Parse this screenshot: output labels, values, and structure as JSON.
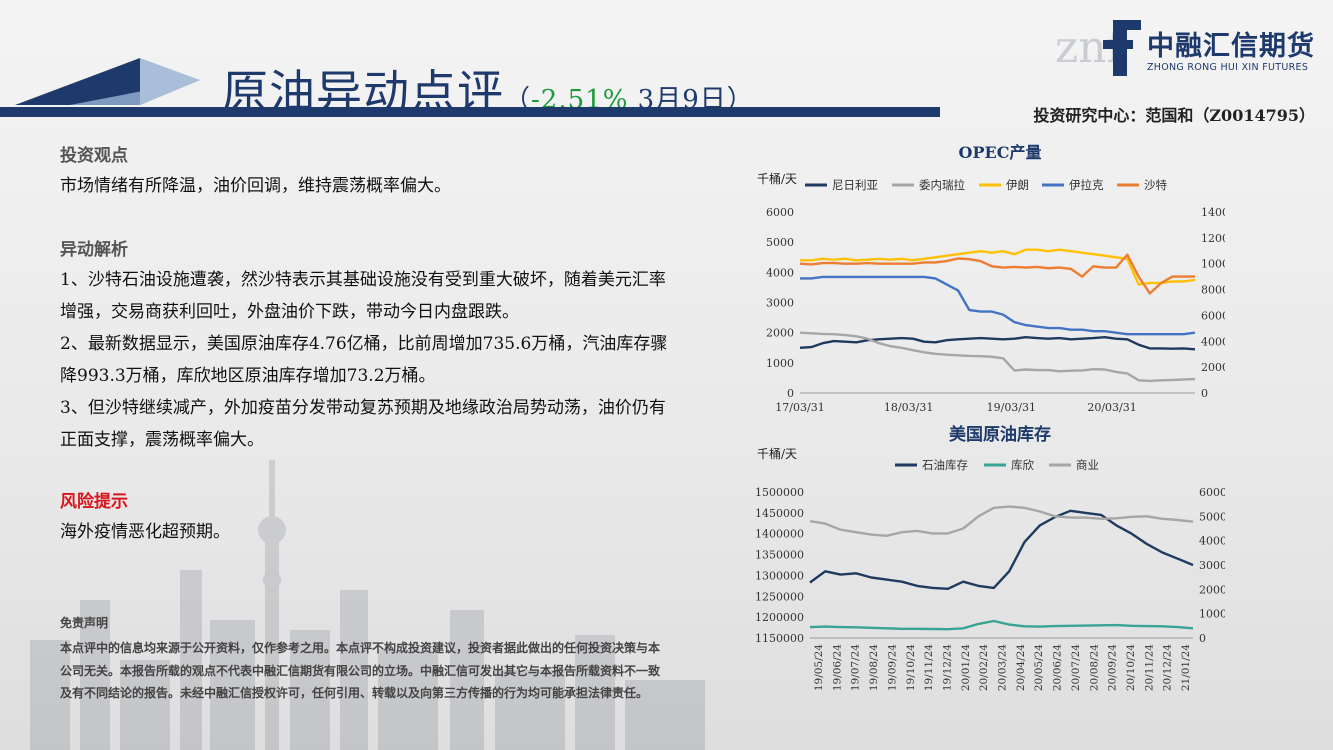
{
  "header": {
    "title_main": "原油异动点评",
    "title_paren_open": "（",
    "title_pct": "-2.51%",
    "title_date": " 3月9日",
    "title_paren_close": "）",
    "author": "投资研究中心：范国和（Z0014795）"
  },
  "logo": {
    "mark": "znf",
    "cn": "中融汇信期货",
    "en": "ZHONG RONG HUI XIN FUTURES"
  },
  "sections": {
    "view_title": "投资观点",
    "view_text": "市场情绪有所降温，油价回调，维持震荡概率偏大。",
    "analysis_title": "异动解析",
    "analysis_p1": "1、沙特石油设施遭袭，然沙特表示其基础设施没有受到重大破坏，随着美元汇率增强，交易商获利回吐，外盘油价下跌，带动今日内盘跟跌。",
    "analysis_p2": "2、最新数据显示，美国原油库存4.76亿桶，比前周增加735.6万桶，汽油库存骤降993.3万桶，库欣地区原油库存增加73.2万桶。",
    "analysis_p3": "3、但沙特继续减产，外加疫苗分发带动复苏预期及地缘政治局势动荡，油价仍有正面支撑，震荡概率偏大。",
    "risk_title": "风险提示",
    "risk_text": "海外疫情恶化超预期。"
  },
  "disclaimer": {
    "title": "免责声明",
    "text": "本点评中的信息均来源于公开资料，仅作参考之用。本点评不构成投资建议，投资者据此做出的任何投资决策与本公司无关。本报告所载的观点不代表中融汇信期货有限公司的立场。中融汇信可发出其它与本报告所载资料不一致及有不同结论的报告。未经中融汇信授权许可，任何引用、转载以及向第三方传播的行为均可能承担法律责任。"
  },
  "colors": {
    "navy": "#1e3a6c",
    "green": "#1a9a3a",
    "red": "#d8141c"
  },
  "chart_data": [
    {
      "type": "line",
      "title": "OPEC产量",
      "ylabel": "千桶/天",
      "ylim": [
        0,
        6000
      ],
      "y2lim": [
        0,
        14000
      ],
      "yticks": [
        "6000",
        "5000",
        "4000",
        "3000",
        "2000",
        "1000",
        "0"
      ],
      "y2ticks": [
        "14000",
        "12000",
        "10000",
        "8000",
        "6000",
        "4000",
        "2000",
        "0"
      ],
      "x_labels": [
        "17/03/31",
        "18/03/31",
        "19/03/31",
        "20/03/31"
      ],
      "legend": "top",
      "series": [
        {
          "name": "尼日利亚",
          "color": "#1f3a5f",
          "axis": "left",
          "values": [
            1500,
            1520,
            1650,
            1720,
            1700,
            1680,
            1750,
            1780,
            1800,
            1820,
            1800,
            1700,
            1680,
            1750,
            1780,
            1800,
            1820,
            1800,
            1780,
            1800,
            1850,
            1820,
            1800,
            1820,
            1780,
            1800,
            1820,
            1850,
            1800,
            1780,
            1600,
            1480,
            1480,
            1470,
            1480,
            1450
          ]
        },
        {
          "name": "委内瑞拉",
          "color": "#a6a6a6",
          "axis": "left",
          "values": [
            2000,
            1980,
            1960,
            1950,
            1920,
            1880,
            1800,
            1650,
            1550,
            1500,
            1420,
            1350,
            1300,
            1270,
            1250,
            1230,
            1220,
            1200,
            1150,
            750,
            780,
            760,
            760,
            720,
            740,
            750,
            790,
            780,
            700,
            650,
            420,
            400,
            420,
            430,
            450,
            460
          ]
        },
        {
          "name": "伊朗",
          "color": "#ffc000",
          "axis": "left",
          "values": [
            4400,
            4400,
            4450,
            4420,
            4450,
            4400,
            4420,
            4450,
            4420,
            4450,
            4400,
            4450,
            4500,
            4550,
            4600,
            4650,
            4700,
            4650,
            4700,
            4600,
            4750,
            4750,
            4700,
            4750,
            4700,
            4650,
            4600,
            4550,
            4500,
            4450,
            3600,
            3650,
            3650,
            3700,
            3700,
            3750
          ]
        },
        {
          "name": "伊拉克",
          "color": "#4472c4",
          "axis": "left",
          "values": [
            3800,
            3800,
            3850,
            3850,
            3850,
            3850,
            3850,
            3850,
            3850,
            3850,
            3850,
            3850,
            3800,
            3600,
            3400,
            2750,
            2700,
            2700,
            2600,
            2350,
            2250,
            2200,
            2150,
            2150,
            2100,
            2100,
            2050,
            2050,
            2000,
            1950,
            1950,
            1950,
            1950,
            1950,
            1950,
            2000
          ]
        },
        {
          "name": "沙特",
          "color": "#ed7d31",
          "axis": "right",
          "values": [
            10000,
            9950,
            10050,
            10050,
            10000,
            10000,
            10050,
            10000,
            10000,
            10000,
            10000,
            10100,
            10100,
            10200,
            10400,
            10350,
            10200,
            9800,
            9700,
            9750,
            9700,
            9750,
            9650,
            9700,
            9600,
            9000,
            9800,
            9700,
            9700,
            10700,
            9000,
            7700,
            8500,
            9000,
            9000,
            9000
          ]
        }
      ]
    },
    {
      "type": "line",
      "title": "美国原油库存",
      "ylabel": "千桶/天",
      "ylim": [
        1150000,
        1500000
      ],
      "y2lim": [
        0,
        600000
      ],
      "yticks": [
        "1500000",
        "1450000",
        "1400000",
        "1350000",
        "1300000",
        "1250000",
        "1200000",
        "1150000"
      ],
      "y2ticks": [
        "600000",
        "500000",
        "400000",
        "300000",
        "200000",
        "100000",
        "0"
      ],
      "x_labels": [
        "19/05/24",
        "19/06/24",
        "19/07/24",
        "19/08/24",
        "19/09/24",
        "19/10/24",
        "19/11/24",
        "19/12/24",
        "20/01/24",
        "20/02/24",
        "20/03/24",
        "20/04/24",
        "20/05/24",
        "20/06/24",
        "20/07/24",
        "20/08/24",
        "20/09/24",
        "20/10/24",
        "20/11/24",
        "20/12/24",
        "21/01/24"
      ],
      "legend": "top",
      "series": [
        {
          "name": "石油库存",
          "color": "#1f3a5f",
          "axis": "left",
          "values": [
            1283000,
            1310000,
            1302000,
            1305000,
            1295000,
            1290000,
            1285000,
            1275000,
            1270000,
            1268000,
            1285000,
            1275000,
            1270000,
            1310000,
            1380000,
            1420000,
            1440000,
            1455000,
            1450000,
            1445000,
            1420000,
            1400000,
            1375000,
            1355000,
            1340000,
            1325000
          ]
        },
        {
          "name": "库欣",
          "color": "#3aa394",
          "axis": "right",
          "values": [
            45000,
            47000,
            45000,
            44000,
            42000,
            40000,
            38000,
            38000,
            37000,
            36000,
            40000,
            58000,
            70000,
            55000,
            48000,
            47000,
            49000,
            50000,
            51000,
            52000,
            53000,
            50000,
            49000,
            48000,
            45000,
            40000
          ]
        },
        {
          "name": "商业",
          "color": "#a6a6a6",
          "axis": "right",
          "values": [
            480000,
            470000,
            445000,
            435000,
            425000,
            420000,
            435000,
            440000,
            430000,
            430000,
            450000,
            500000,
            535000,
            540000,
            535000,
            520000,
            500000,
            495000,
            495000,
            490000,
            492000,
            498000,
            500000,
            490000,
            485000,
            478000
          ]
        }
      ]
    }
  ]
}
